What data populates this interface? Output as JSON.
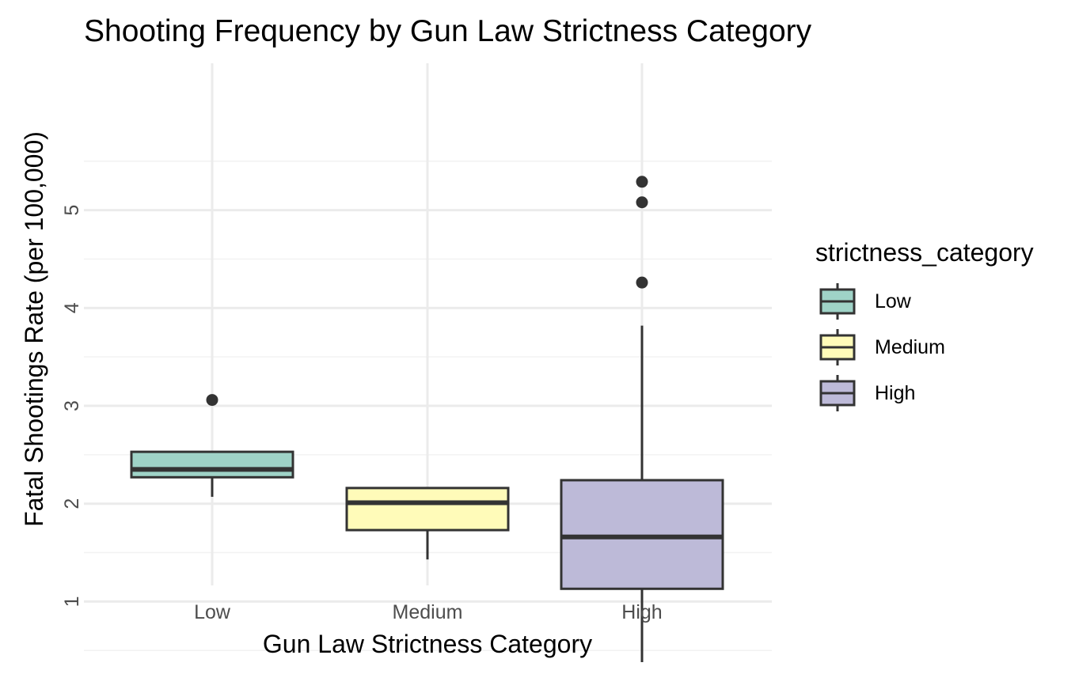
{
  "chart_data": {
    "type": "boxplot",
    "title": "Shooting Frequency by Gun Law Strictness Category",
    "xlabel": "Gun Law Strictness Category",
    "ylabel": "Fatal Shootings Rate (per 100,000)",
    "ylim": [
      0.25,
      5.5
    ],
    "y_ticks": [
      1,
      2,
      3,
      4,
      5
    ],
    "grid": true,
    "legend": {
      "title": "strictness_category",
      "position": "right"
    },
    "categories": [
      "Low",
      "Medium",
      "High"
    ],
    "boxes": [
      {
        "category": "Low",
        "color": "#9fd3c7",
        "min": 2.07,
        "q1": 2.27,
        "median": 2.35,
        "q3": 2.53,
        "max": 2.53,
        "outliers": [
          3.06
        ]
      },
      {
        "category": "Medium",
        "color": "#fffbb9",
        "min": 1.43,
        "q1": 1.73,
        "median": 2.01,
        "q3": 2.16,
        "max": 2.16,
        "outliers": []
      },
      {
        "category": "High",
        "color": "#bdbad8",
        "min": 0.38,
        "q1": 1.13,
        "median": 1.66,
        "q3": 2.24,
        "max": 3.82,
        "outliers": [
          4.26,
          5.08,
          5.29
        ]
      }
    ]
  }
}
